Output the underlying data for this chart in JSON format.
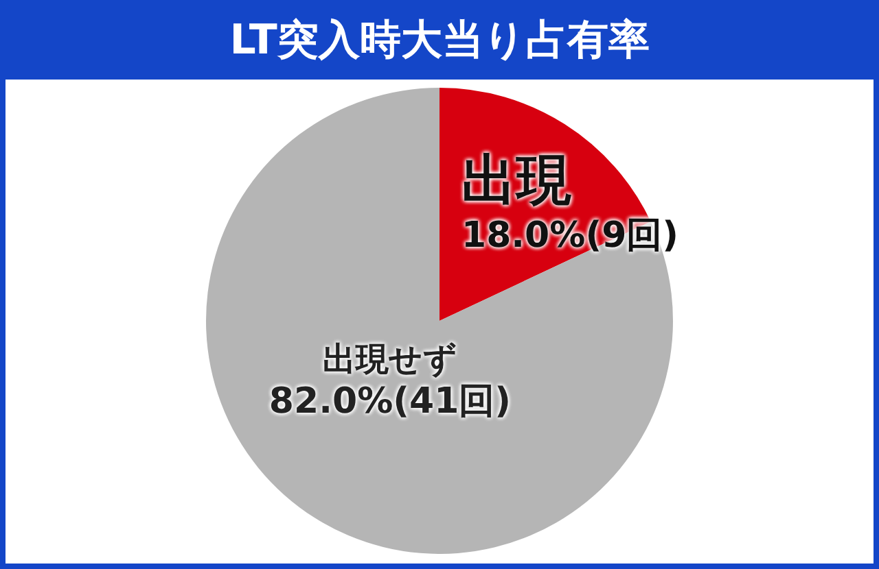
{
  "chart_data": {
    "type": "pie",
    "title": "LT突入時大当り占有率",
    "categories": [
      "出現",
      "出現せず"
    ],
    "values": [
      18,
      82
    ],
    "colors": [
      "#d7000f",
      "#b5b5b5"
    ],
    "value_labels": [
      "18.0%(9回)",
      "82.0%(41回)"
    ],
    "legend": false
  }
}
